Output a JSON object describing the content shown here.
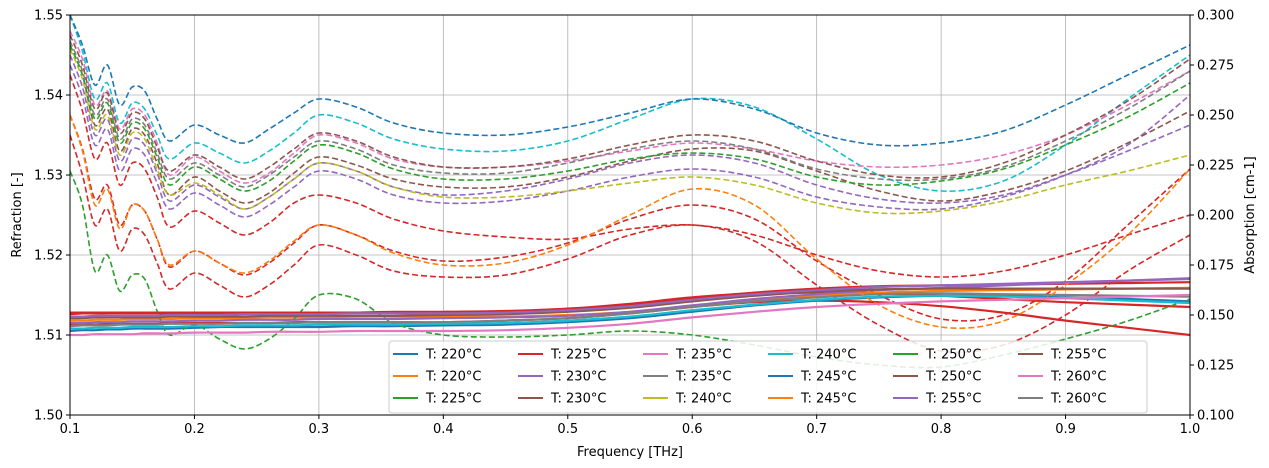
{
  "chart_data": {
    "type": "line",
    "xlabel": "Frequency [THz]",
    "ylabel_left": "Refraction [-]",
    "ylabel_right": "Absorption [cm-1]",
    "xlim": [
      0.1,
      1.0
    ],
    "ylim_left": [
      1.5,
      1.55
    ],
    "ylim_right": [
      0.1,
      0.3
    ],
    "x_ticks": [
      "0.1",
      "0.2",
      "0.3",
      "0.4",
      "0.5",
      "0.6",
      "0.7",
      "0.8",
      "0.9",
      "1.0"
    ],
    "y_left_ticks": [
      "1.50",
      "1.51",
      "1.52",
      "1.53",
      "1.54",
      "1.55"
    ],
    "y_right_ticks": [
      "0.100",
      "0.125",
      "0.150",
      "0.175",
      "0.200",
      "0.225",
      "0.250",
      "0.275",
      "0.300"
    ],
    "grid": true,
    "legend_placement": "lower-center",
    "legend_columns": 6,
    "x": [
      0.1,
      0.11,
      0.12,
      0.13,
      0.14,
      0.15,
      0.16,
      0.17,
      0.18,
      0.2,
      0.22,
      0.24,
      0.26,
      0.28,
      0.3,
      0.33,
      0.36,
      0.4,
      0.45,
      0.5,
      0.55,
      0.6,
      0.65,
      0.7,
      0.75,
      0.8,
      0.85,
      0.9,
      0.95,
      1.0
    ],
    "series": [
      {
        "name": "T: 220°C",
        "axis": "left",
        "style": "solid",
        "color": "#1f77b4",
        "values": [
          1.5105,
          1.5106,
          1.5106,
          1.5107,
          1.5107,
          1.5108,
          1.5108,
          1.5108,
          1.5108,
          1.5109,
          1.511,
          1.511,
          1.511,
          1.511,
          1.511,
          1.5111,
          1.5111,
          1.5112,
          1.5113,
          1.5116,
          1.5121,
          1.5129,
          1.5137,
          1.5143,
          1.5147,
          1.5149,
          1.5149,
          1.5147,
          1.5145,
          1.5142
        ]
      },
      {
        "name": "T: 220°C",
        "axis": "left",
        "style": "solid",
        "color": "#ff7f0e",
        "values": [
          1.5118,
          1.5118,
          1.5119,
          1.5119,
          1.5119,
          1.512,
          1.512,
          1.512,
          1.512,
          1.5121,
          1.5121,
          1.5121,
          1.5122,
          1.5122,
          1.5122,
          1.5123,
          1.5123,
          1.5123,
          1.5123,
          1.5125,
          1.5129,
          1.5136,
          1.5143,
          1.5149,
          1.5153,
          1.5155,
          1.5156,
          1.5157,
          1.5158,
          1.5159
        ]
      },
      {
        "name": "T: 225°C",
        "axis": "right",
        "style": "dashed",
        "color": "#2ca02c",
        "values": [
          0.222,
          0.205,
          0.172,
          0.18,
          0.162,
          0.17,
          0.168,
          0.152,
          0.14,
          0.145,
          0.138,
          0.133,
          0.138,
          0.148,
          0.16,
          0.158,
          0.146,
          0.14,
          0.139,
          0.14,
          0.142,
          0.14,
          0.135,
          0.129,
          0.125,
          0.124,
          0.13,
          0.138,
          0.147,
          0.158
        ]
      },
      {
        "name": "T: 225°C",
        "axis": "left",
        "style": "solid",
        "color": "#d62728",
        "values": [
          1.5126,
          1.5127,
          1.5127,
          1.5127,
          1.5127,
          1.5127,
          1.5127,
          1.5127,
          1.5127,
          1.5127,
          1.5127,
          1.5128,
          1.5128,
          1.5128,
          1.5128,
          1.5128,
          1.5128,
          1.5128,
          1.5129,
          1.5132,
          1.5138,
          1.5146,
          1.5153,
          1.5158,
          1.5161,
          1.5162,
          1.5163,
          1.5164,
          1.5165,
          1.5166
        ]
      },
      {
        "name": "T: 230°C",
        "axis": "left",
        "style": "solid",
        "color": "#9467bd",
        "values": [
          1.5115,
          1.5115,
          1.5116,
          1.5116,
          1.5116,
          1.5117,
          1.5117,
          1.5117,
          1.5117,
          1.5118,
          1.5118,
          1.5119,
          1.5119,
          1.5119,
          1.512,
          1.512,
          1.512,
          1.5121,
          1.5122,
          1.5124,
          1.5129,
          1.5137,
          1.5145,
          1.5151,
          1.5156,
          1.5159,
          1.5162,
          1.5165,
          1.5168,
          1.5171
        ]
      },
      {
        "name": "T: 230°C",
        "axis": "right",
        "style": "dashed",
        "color": "#8c564b",
        "values": [
          0.285,
          0.27,
          0.245,
          0.253,
          0.232,
          0.243,
          0.24,
          0.226,
          0.21,
          0.219,
          0.212,
          0.206,
          0.211,
          0.221,
          0.229,
          0.225,
          0.218,
          0.214,
          0.214,
          0.219,
          0.227,
          0.233,
          0.232,
          0.222,
          0.212,
          0.207,
          0.212,
          0.222,
          0.236,
          0.252
        ]
      },
      {
        "name": "T: 235°C",
        "axis": "right",
        "style": "dashed",
        "color": "#e377c2",
        "values": [
          0.292,
          0.278,
          0.255,
          0.262,
          0.243,
          0.253,
          0.25,
          0.236,
          0.22,
          0.229,
          0.222,
          0.216,
          0.221,
          0.231,
          0.24,
          0.236,
          0.228,
          0.224,
          0.224,
          0.227,
          0.232,
          0.236,
          0.233,
          0.227,
          0.224,
          0.225,
          0.23,
          0.24,
          0.255,
          0.272
        ]
      },
      {
        "name": "T: 235°C",
        "axis": "left",
        "style": "solid",
        "color": "#7f7f7f",
        "values": [
          1.5111,
          1.5112,
          1.5112,
          1.5112,
          1.5113,
          1.5113,
          1.5113,
          1.5113,
          1.5114,
          1.5114,
          1.5114,
          1.5115,
          1.5115,
          1.5115,
          1.5116,
          1.5116,
          1.5116,
          1.5116,
          1.5118,
          1.5121,
          1.5127,
          1.5135,
          1.5142,
          1.5147,
          1.5151,
          1.5152,
          1.5151,
          1.515,
          1.5149,
          1.5148
        ]
      },
      {
        "name": "T: 240°C",
        "axis": "right",
        "style": "dashed",
        "color": "#bcbd22",
        "values": [
          0.283,
          0.268,
          0.243,
          0.25,
          0.23,
          0.241,
          0.238,
          0.223,
          0.21,
          0.216,
          0.21,
          0.203,
          0.209,
          0.218,
          0.226,
          0.222,
          0.214,
          0.209,
          0.209,
          0.212,
          0.216,
          0.219,
          0.215,
          0.206,
          0.201,
          0.202,
          0.207,
          0.215,
          0.222,
          0.23
        ]
      },
      {
        "name": "T: 240°C",
        "axis": "left",
        "style": "solid",
        "color": "#17becf",
        "values": [
          1.5108,
          1.5108,
          1.5109,
          1.5109,
          1.5109,
          1.511,
          1.511,
          1.511,
          1.511,
          1.5111,
          1.5111,
          1.5112,
          1.5112,
          1.5112,
          1.5113,
          1.5113,
          1.5113,
          1.5114,
          1.5115,
          1.5118,
          1.5123,
          1.5131,
          1.5138,
          1.5144,
          1.5148,
          1.5149,
          1.5148,
          1.5146,
          1.5143,
          1.514
        ]
      },
      {
        "name": "T: 245°C",
        "axis": "right",
        "style": "dashed",
        "color": "#1f77b4",
        "values": [
          0.3,
          0.285,
          0.265,
          0.275,
          0.255,
          0.264,
          0.262,
          0.248,
          0.237,
          0.245,
          0.24,
          0.236,
          0.243,
          0.251,
          0.258,
          0.254,
          0.246,
          0.241,
          0.24,
          0.244,
          0.251,
          0.258,
          0.253,
          0.241,
          0.235,
          0.236,
          0.242,
          0.255,
          0.27,
          0.285
        ]
      },
      {
        "name": "T: 245°C",
        "axis": "right",
        "style": "dashed",
        "color": "#ff7f0e",
        "values": [
          0.25,
          0.232,
          0.205,
          0.213,
          0.193,
          0.205,
          0.202,
          0.188,
          0.175,
          0.182,
          0.176,
          0.171,
          0.177,
          0.187,
          0.195,
          0.19,
          0.181,
          0.175,
          0.176,
          0.185,
          0.2,
          0.213,
          0.205,
          0.178,
          0.155,
          0.144,
          0.147,
          0.165,
          0.19,
          0.223
        ]
      },
      {
        "name": "T: 250°C",
        "axis": "right",
        "style": "dashed",
        "color": "#2ca02c",
        "values": [
          0.285,
          0.27,
          0.248,
          0.256,
          0.236,
          0.246,
          0.243,
          0.229,
          0.215,
          0.224,
          0.218,
          0.212,
          0.217,
          0.227,
          0.235,
          0.231,
          0.223,
          0.218,
          0.218,
          0.222,
          0.228,
          0.231,
          0.228,
          0.219,
          0.215,
          0.217,
          0.223,
          0.235,
          0.249,
          0.266
        ]
      },
      {
        "name": "T: 250°C",
        "axis": "left",
        "style": "solid",
        "color": "#8c564b",
        "values": [
          1.5121,
          1.5121,
          1.5122,
          1.5122,
          1.5122,
          1.5122,
          1.5122,
          1.5122,
          1.5123,
          1.5123,
          1.5123,
          1.5123,
          1.5124,
          1.5124,
          1.5124,
          1.5124,
          1.5124,
          1.5125,
          1.5126,
          1.5129,
          1.5134,
          1.5142,
          1.5149,
          1.5154,
          1.5157,
          1.5158,
          1.5158,
          1.5158,
          1.5158,
          1.5158
        ]
      },
      {
        "name": "T: 255°C",
        "axis": "left",
        "style": "solid",
        "color": "#9467bd",
        "values": [
          1.5123,
          1.5123,
          1.5124,
          1.5124,
          1.5124,
          1.5124,
          1.5124,
          1.5124,
          1.5125,
          1.5125,
          1.5125,
          1.5126,
          1.5126,
          1.5126,
          1.5126,
          1.5127,
          1.5127,
          1.5127,
          1.5128,
          1.5131,
          1.5136,
          1.5144,
          1.5151,
          1.5156,
          1.516,
          1.5162,
          1.5164,
          1.5166,
          1.5168,
          1.517
        ]
      },
      {
        "name": "T: 255°C",
        "axis": "right",
        "style": "dashed",
        "color": "#8c564b",
        "values": [
          0.29,
          0.275,
          0.253,
          0.261,
          0.241,
          0.251,
          0.248,
          0.234,
          0.222,
          0.23,
          0.224,
          0.218,
          0.224,
          0.233,
          0.241,
          0.237,
          0.229,
          0.224,
          0.224,
          0.228,
          0.235,
          0.24,
          0.237,
          0.227,
          0.22,
          0.219,
          0.226,
          0.24,
          0.257,
          0.278
        ]
      },
      {
        "name": "T: 260°C",
        "axis": "left",
        "style": "solid",
        "color": "#e377c2",
        "values": [
          1.51,
          1.51,
          1.5101,
          1.5101,
          1.5101,
          1.5101,
          1.5102,
          1.5102,
          1.5102,
          1.5103,
          1.5103,
          1.5103,
          1.5104,
          1.5104,
          1.5104,
          1.5105,
          1.5105,
          1.5105,
          1.5106,
          1.5109,
          1.5114,
          1.5122,
          1.5129,
          1.5135,
          1.5139,
          1.5142,
          1.5144,
          1.5146,
          1.5148,
          1.515
        ]
      },
      {
        "name": "T: 260°C",
        "axis": "right",
        "style": "dashed",
        "color": "#7f7f7f",
        "values": [
          0.287,
          0.272,
          0.25,
          0.258,
          0.238,
          0.248,
          0.245,
          0.231,
          0.218,
          0.226,
          0.22,
          0.214,
          0.22,
          0.229,
          0.237,
          0.233,
          0.225,
          0.221,
          0.221,
          0.226,
          0.233,
          0.237,
          0.233,
          0.223,
          0.218,
          0.218,
          0.224,
          0.237,
          0.253,
          0.272
        ]
      }
    ],
    "extra_series": [
      {
        "axis": "right",
        "style": "dashed",
        "color": "#d62728",
        "values": [
          0.24,
          0.22,
          0.195,
          0.203,
          0.182,
          0.193,
          0.19,
          0.176,
          0.163,
          0.171,
          0.165,
          0.159,
          0.165,
          0.175,
          0.185,
          0.18,
          0.172,
          0.169,
          0.17,
          0.178,
          0.19,
          0.195,
          0.187,
          0.165,
          0.145,
          0.132,
          0.135,
          0.15,
          0.172,
          0.19
        ]
      },
      {
        "axis": "right",
        "style": "dashed",
        "color": "#d62728",
        "values": [
          0.25,
          0.233,
          0.208,
          0.215,
          0.195,
          0.205,
          0.202,
          0.188,
          0.174,
          0.182,
          0.176,
          0.17,
          0.176,
          0.186,
          0.195,
          0.19,
          0.182,
          0.177,
          0.179,
          0.186,
          0.198,
          0.205,
          0.198,
          0.177,
          0.16,
          0.148,
          0.15,
          0.167,
          0.195,
          0.223
        ]
      },
      {
        "axis": "right",
        "style": "dashed",
        "color": "#d62728",
        "values": [
          0.27,
          0.252,
          0.228,
          0.236,
          0.215,
          0.226,
          0.223,
          0.209,
          0.194,
          0.202,
          0.196,
          0.19,
          0.196,
          0.206,
          0.21,
          0.206,
          0.198,
          0.192,
          0.189,
          0.188,
          0.193,
          0.195,
          0.19,
          0.18,
          0.172,
          0.169,
          0.172,
          0.18,
          0.19,
          0.2
        ]
      },
      {
        "axis": "right",
        "style": "dashed",
        "color": "#9467bd",
        "values": [
          0.28,
          0.264,
          0.24,
          0.248,
          0.227,
          0.238,
          0.235,
          0.221,
          0.207,
          0.215,
          0.209,
          0.203,
          0.209,
          0.218,
          0.226,
          0.222,
          0.214,
          0.21,
          0.212,
          0.218,
          0.226,
          0.23,
          0.226,
          0.215,
          0.208,
          0.206,
          0.21,
          0.22,
          0.232,
          0.245
        ]
      },
      {
        "axis": "right",
        "style": "dashed",
        "color": "#17becf",
        "values": [
          0.3,
          0.282,
          0.258,
          0.266,
          0.246,
          0.256,
          0.253,
          0.24,
          0.228,
          0.236,
          0.231,
          0.226,
          0.232,
          0.241,
          0.25,
          0.246,
          0.238,
          0.233,
          0.232,
          0.237,
          0.248,
          0.258,
          0.254,
          0.238,
          0.22,
          0.212,
          0.217,
          0.235,
          0.258,
          0.28
        ]
      },
      {
        "axis": "right",
        "style": "dashed",
        "color": "#9467bd",
        "values": [
          0.275,
          0.259,
          0.235,
          0.243,
          0.222,
          0.233,
          0.23,
          0.216,
          0.203,
          0.211,
          0.205,
          0.199,
          0.205,
          0.214,
          0.222,
          0.218,
          0.21,
          0.206,
          0.207,
          0.212,
          0.219,
          0.223,
          0.219,
          0.209,
          0.204,
          0.203,
          0.209,
          0.22,
          0.235,
          0.26
        ]
      },
      {
        "axis": "left",
        "style": "solid",
        "color": "#d62728",
        "values": [
          1.5128,
          1.5128,
          1.5128,
          1.5128,
          1.5128,
          1.5128,
          1.5128,
          1.5128,
          1.5128,
          1.5128,
          1.5128,
          1.5128,
          1.5128,
          1.5128,
          1.5128,
          1.5128,
          1.5129,
          1.5129,
          1.513,
          1.5133,
          1.5139,
          1.5147,
          1.5152,
          1.5153,
          1.5152,
          1.5149,
          1.5145,
          1.5141,
          1.5138,
          1.5135
        ]
      },
      {
        "axis": "left",
        "style": "solid",
        "color": "#d62728",
        "values": [
          1.5113,
          1.5113,
          1.5113,
          1.5114,
          1.5114,
          1.5114,
          1.5114,
          1.5114,
          1.5115,
          1.5115,
          1.5115,
          1.5115,
          1.5115,
          1.5116,
          1.5116,
          1.5116,
          1.5116,
          1.5116,
          1.5118,
          1.5121,
          1.5127,
          1.5135,
          1.5141,
          1.5143,
          1.5141,
          1.5136,
          1.5128,
          1.5118,
          1.5109,
          1.51
        ]
      }
    ]
  }
}
